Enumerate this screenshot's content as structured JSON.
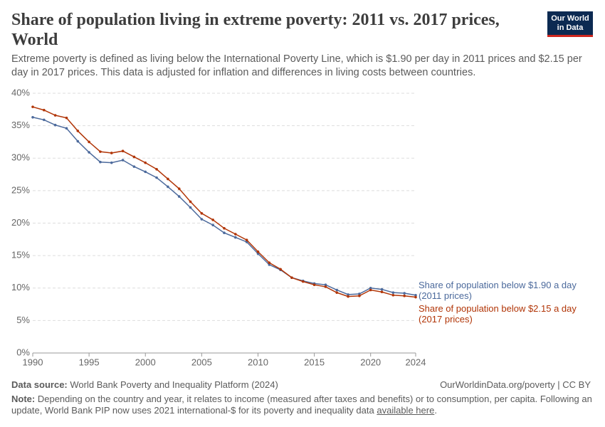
{
  "chart_data": {
    "type": "line",
    "title": "Share of population living in extreme poverty: 2011 vs. 2017 prices, World",
    "subtitle": "Extreme poverty is defined as living below the International Poverty Line, which is $1.90 per day in 2011 prices and $2.15 per day in 2017 prices. This data is adjusted for inflation and differences in living costs between countries.",
    "x": [
      1990,
      1991,
      1992,
      1993,
      1994,
      1995,
      1996,
      1997,
      1998,
      1999,
      2000,
      2001,
      2002,
      2003,
      2004,
      2005,
      2006,
      2007,
      2008,
      2009,
      2010,
      2011,
      2012,
      2013,
      2014,
      2015,
      2016,
      2017,
      2018,
      2019,
      2020,
      2021,
      2022,
      2023,
      2024
    ],
    "series": [
      {
        "name": "Share of population below $1.90 a day (2011 prices)",
        "color": "#4c6a9c",
        "values": [
          36.3,
          35.9,
          35.1,
          34.6,
          32.6,
          30.9,
          29.4,
          29.3,
          29.7,
          28.7,
          27.9,
          27.0,
          25.6,
          24.1,
          22.4,
          20.6,
          19.7,
          18.5,
          17.8,
          17.1,
          15.3,
          13.6,
          12.8,
          11.6,
          11.1,
          10.7,
          10.5,
          9.7,
          9.0,
          9.1,
          10.0,
          9.8,
          9.3,
          9.2,
          8.9
        ]
      },
      {
        "name": "Share of population below $2.15 a day (2017 prices)",
        "color": "#b13507",
        "values": [
          37.9,
          37.4,
          36.6,
          36.2,
          34.2,
          32.5,
          31.0,
          30.8,
          31.1,
          30.2,
          29.3,
          28.3,
          26.8,
          25.3,
          23.3,
          21.5,
          20.5,
          19.2,
          18.3,
          17.4,
          15.6,
          13.9,
          12.9,
          11.6,
          11.0,
          10.5,
          10.2,
          9.3,
          8.7,
          8.8,
          9.7,
          9.4,
          8.9,
          8.8,
          8.6
        ]
      }
    ],
    "xlim": [
      1990,
      2024
    ],
    "xticks": [
      1990,
      1995,
      2000,
      2005,
      2010,
      2015,
      2020,
      2024
    ],
    "ylim": [
      0,
      40
    ],
    "yticks": [
      {
        "value": 0,
        "label": "0%"
      },
      {
        "value": 5,
        "label": "5%"
      },
      {
        "value": 10,
        "label": "10%"
      },
      {
        "value": 15,
        "label": "15%"
      },
      {
        "value": 20,
        "label": "20%"
      },
      {
        "value": 25,
        "label": "25%"
      },
      {
        "value": 30,
        "label": "30%"
      },
      {
        "value": 35,
        "label": "35%"
      },
      {
        "value": 40,
        "label": "40%"
      }
    ],
    "grid": true
  },
  "logo": {
    "line1": "Our World",
    "line2": "in Data"
  },
  "footer": {
    "source_label": "Data source:",
    "source_text": "World Bank Poverty and Inequality Platform (2024)",
    "url": "OurWorldinData.org/poverty | CC BY",
    "note_label": "Note:",
    "note_text": "Depending on the country and year, it relates to income (measured after taxes and benefits) or to consumption, per capita. Following an update, World Bank PIP now uses 2021 international-$ for its poverty and inequality data",
    "note_link": "available here",
    "note_end": "."
  }
}
